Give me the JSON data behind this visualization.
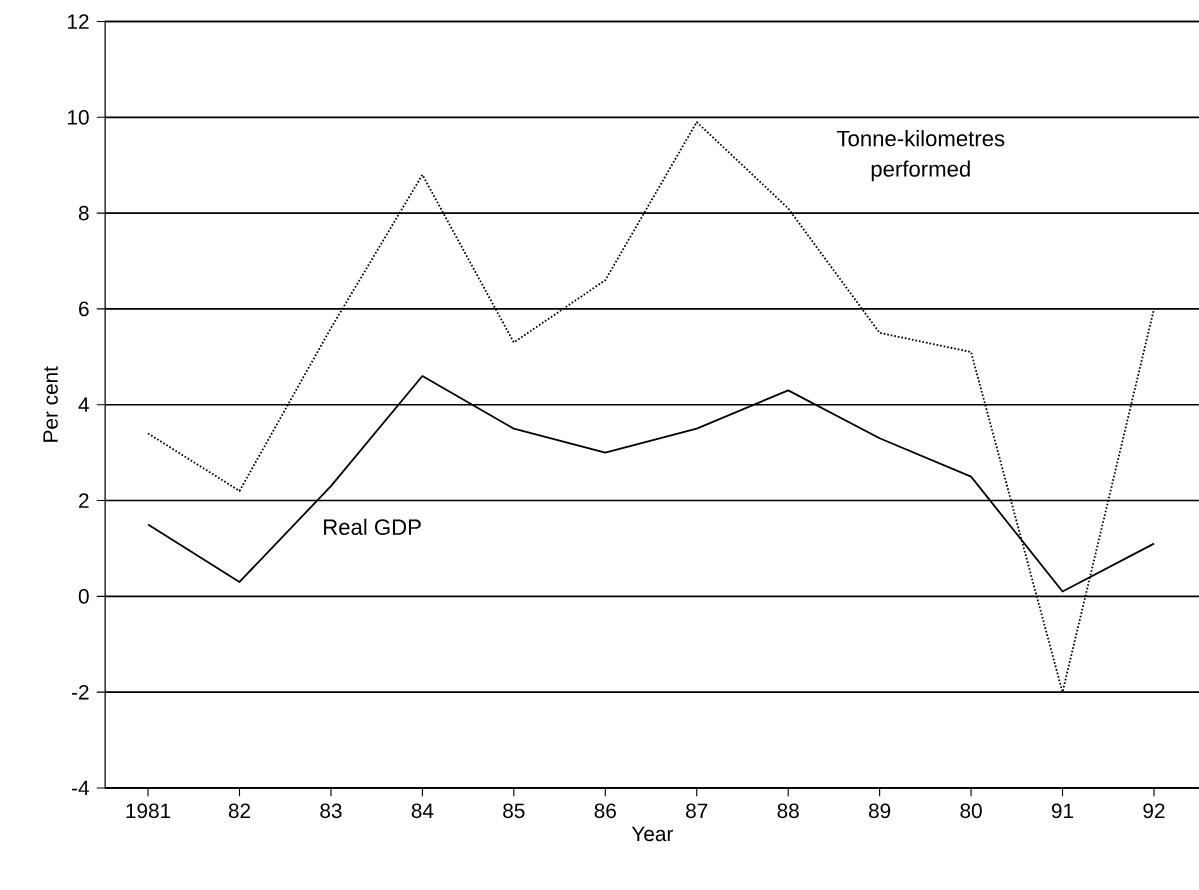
{
  "chart_data": {
    "type": "line",
    "xlabel": "Year",
    "ylabel": "Per cent",
    "categories": [
      "1981",
      "82",
      "83",
      "84",
      "85",
      "86",
      "87",
      "88",
      "89",
      "80",
      "91",
      "92"
    ],
    "series": [
      {
        "name": "Tonne-kilometres performed",
        "color": "#000000",
        "line_style": "dotted",
        "values": [
          3.4,
          2.2,
          5.6,
          8.8,
          5.3,
          6.6,
          9.9,
          8.1,
          5.5,
          5.1,
          -2.0,
          6.0
        ]
      },
      {
        "name": "Real GDP",
        "color": "#000000",
        "line_style": "solid",
        "values": [
          1.5,
          0.3,
          2.3,
          4.6,
          3.5,
          3.0,
          3.5,
          4.3,
          3.3,
          2.5,
          0.1,
          1.1
        ]
      }
    ],
    "ylim": [
      -4,
      12
    ],
    "yticks": [
      -4,
      -2,
      0,
      2,
      4,
      6,
      8,
      10,
      12
    ],
    "grid": "y",
    "legend": false,
    "marker": "none"
  }
}
